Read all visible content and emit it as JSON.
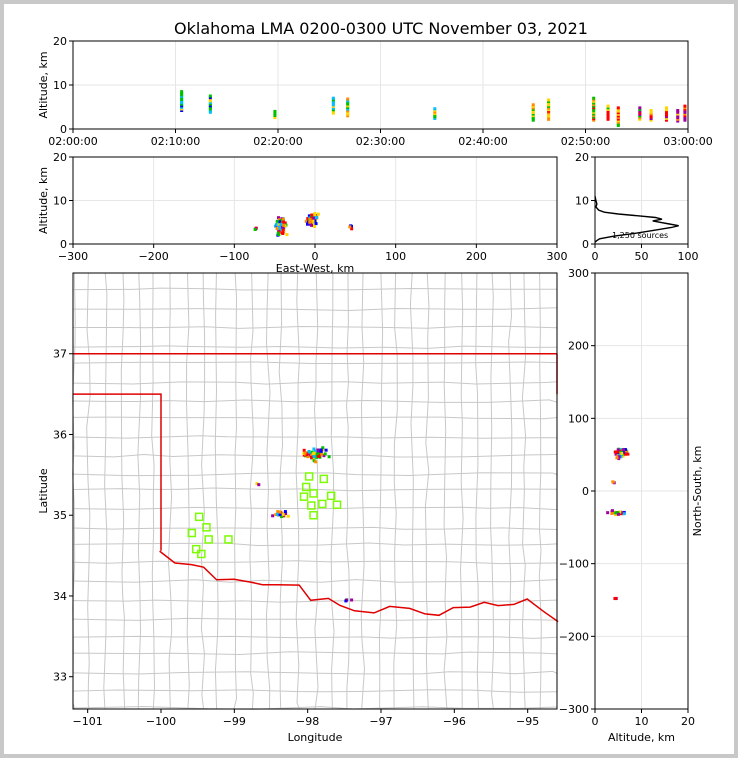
{
  "title": "Oklahoma LMA 0200-0300 UTC November 03, 2021",
  "chart_data": [
    {
      "type": "scatter",
      "name": "altitude-vs-time",
      "ylabel": "Altitude, km",
      "x_ticks": [
        "02:00:00",
        "02:10:00",
        "02:20:00",
        "02:30:00",
        "02:40:00",
        "02:50:00",
        "03:00:00"
      ],
      "xlim": [
        0,
        60
      ],
      "ylim": [
        0,
        20
      ],
      "y_ticks": [
        0,
        10,
        20
      ],
      "columns": [
        {
          "t": 10.6,
          "low": 4.2,
          "high": 8.5
        },
        {
          "t": 13.4,
          "low": 3.8,
          "high": 7.5
        },
        {
          "t": 19.7,
          "low": 2.6,
          "high": 4.0
        },
        {
          "t": 25.4,
          "low": 3.6,
          "high": 7.0
        },
        {
          "t": 26.8,
          "low": 3.0,
          "high": 6.8
        },
        {
          "t": 35.3,
          "low": 2.4,
          "high": 4.6
        },
        {
          "t": 44.9,
          "low": 2.0,
          "high": 5.5
        },
        {
          "t": 46.4,
          "low": 2.2,
          "high": 6.6
        },
        {
          "t": 50.8,
          "low": 2.0,
          "high": 7.0
        },
        {
          "t": 52.2,
          "low": 2.2,
          "high": 5.2
        },
        {
          "t": 53.2,
          "low": 0.8,
          "high": 4.8
        },
        {
          "t": 55.3,
          "low": 2.2,
          "high": 4.8
        },
        {
          "t": 56.4,
          "low": 2.0,
          "high": 4.2
        },
        {
          "t": 57.9,
          "low": 2.0,
          "high": 4.8
        },
        {
          "t": 59.0,
          "low": 1.8,
          "high": 4.2
        },
        {
          "t": 59.7,
          "low": 2.0,
          "high": 5.2
        }
      ]
    },
    {
      "type": "scatter",
      "name": "altitude-vs-east-west",
      "xlabel": "East-West, km",
      "ylabel": "Altitude, km",
      "xlim": [
        -300,
        300
      ],
      "ylim": [
        0,
        20
      ],
      "x_ticks": [
        -300,
        -200,
        -100,
        0,
        100,
        200,
        300
      ],
      "y_ticks": [
        0,
        10,
        20
      ],
      "clusters": [
        {
          "x": -42,
          "y": 4.0,
          "sx": 5,
          "sy": 1.6,
          "n": 55
        },
        {
          "x": -3,
          "y": 5.6,
          "sx": 6,
          "sy": 1.1,
          "n": 60
        },
        {
          "x": 44,
          "y": 4.0,
          "sx": 1.5,
          "sy": 1.0,
          "n": 4
        },
        {
          "x": -74,
          "y": 3.5,
          "sx": 1,
          "sy": 0.5,
          "n": 3
        }
      ]
    },
    {
      "type": "line",
      "name": "altitude-histogram",
      "annotation": "1,250 sources",
      "xlim": [
        0,
        100
      ],
      "ylim": [
        0,
        20
      ],
      "x_ticks": [
        0,
        50,
        100
      ],
      "y_ticks": [
        0,
        10,
        20
      ],
      "points": [
        [
          0,
          0.4
        ],
        [
          2,
          0.8
        ],
        [
          5,
          1.2
        ],
        [
          20,
          1.8
        ],
        [
          45,
          2.5
        ],
        [
          65,
          3.2
        ],
        [
          82,
          3.8
        ],
        [
          90,
          4.2
        ],
        [
          80,
          4.6
        ],
        [
          70,
          5.0
        ],
        [
          62,
          5.3
        ],
        [
          72,
          5.7
        ],
        [
          65,
          6.1
        ],
        [
          45,
          6.5
        ],
        [
          25,
          6.9
        ],
        [
          10,
          7.3
        ],
        [
          4,
          7.8
        ],
        [
          1,
          8.5
        ],
        [
          2,
          9.2
        ],
        [
          1,
          10.0
        ],
        [
          0,
          11.0
        ]
      ]
    },
    {
      "type": "scatter",
      "name": "plan-view-map",
      "xlabel": "Longitude",
      "ylabel": "Latitude",
      "xlim": [
        -101.2,
        -94.6
      ],
      "ylim": [
        32.6,
        38.0
      ],
      "x_ticks": [
        -101,
        -100,
        -99,
        -98,
        -97,
        -96,
        -95
      ],
      "y_ticks": [
        33,
        34,
        35,
        36,
        37
      ],
      "clusters": [
        {
          "lon": -97.9,
          "lat": 35.75,
          "s": 0.12,
          "n": 60
        },
        {
          "lon": -98.35,
          "lat": 35.02,
          "s": 0.08,
          "n": 20
        },
        {
          "lon": -97.45,
          "lat": 33.95,
          "s": 0.03,
          "n": 4
        },
        {
          "lon": -98.68,
          "lat": 35.38,
          "s": 0.02,
          "n": 2
        }
      ],
      "stations": [
        [
          -99.48,
          34.98
        ],
        [
          -99.38,
          34.85
        ],
        [
          -99.58,
          34.78
        ],
        [
          -99.35,
          34.7
        ],
        [
          -99.08,
          34.7
        ],
        [
          -99.52,
          34.58
        ],
        [
          -99.45,
          34.52
        ],
        [
          -97.98,
          35.48
        ],
        [
          -97.78,
          35.45
        ],
        [
          -98.02,
          35.35
        ],
        [
          -97.92,
          35.27
        ],
        [
          -98.05,
          35.23
        ],
        [
          -97.68,
          35.24
        ],
        [
          -97.95,
          35.12
        ],
        [
          -97.8,
          35.14
        ],
        [
          -97.6,
          35.13
        ],
        [
          -97.92,
          35.0
        ]
      ]
    },
    {
      "type": "scatter",
      "name": "north-south-vs-altitude",
      "xlabel": "Altitude, km",
      "ylabel": "North-South, km",
      "xlim": [
        0,
        20
      ],
      "ylim": [
        -300,
        300
      ],
      "x_ticks": [
        0,
        10,
        20
      ],
      "y_ticks": [
        -300,
        -200,
        -100,
        0,
        100,
        200,
        300
      ],
      "clusters": [
        {
          "x": 5.6,
          "y": 52,
          "sx": 1.0,
          "sy": 5,
          "n": 60
        },
        {
          "x": 4.5,
          "y": -30,
          "sx": 1.5,
          "sy": 2,
          "n": 22
        },
        {
          "x": 4.0,
          "y": 12,
          "sx": 0.3,
          "sy": 1,
          "n": 3
        },
        {
          "x": 4.5,
          "y": -148,
          "sx": 0.5,
          "sy": 1,
          "n": 3
        }
      ]
    }
  ],
  "colors": {
    "state_border": "#e00000",
    "county_lines": "#c8c8c8",
    "stations": "#7cfc00",
    "grid": "#e6e6e6",
    "palette": [
      "#0000ff",
      "#00bfff",
      "#00c000",
      "#ffd700",
      "#ff8c00",
      "#ff0000",
      "#a000a0",
      "#000000"
    ]
  }
}
